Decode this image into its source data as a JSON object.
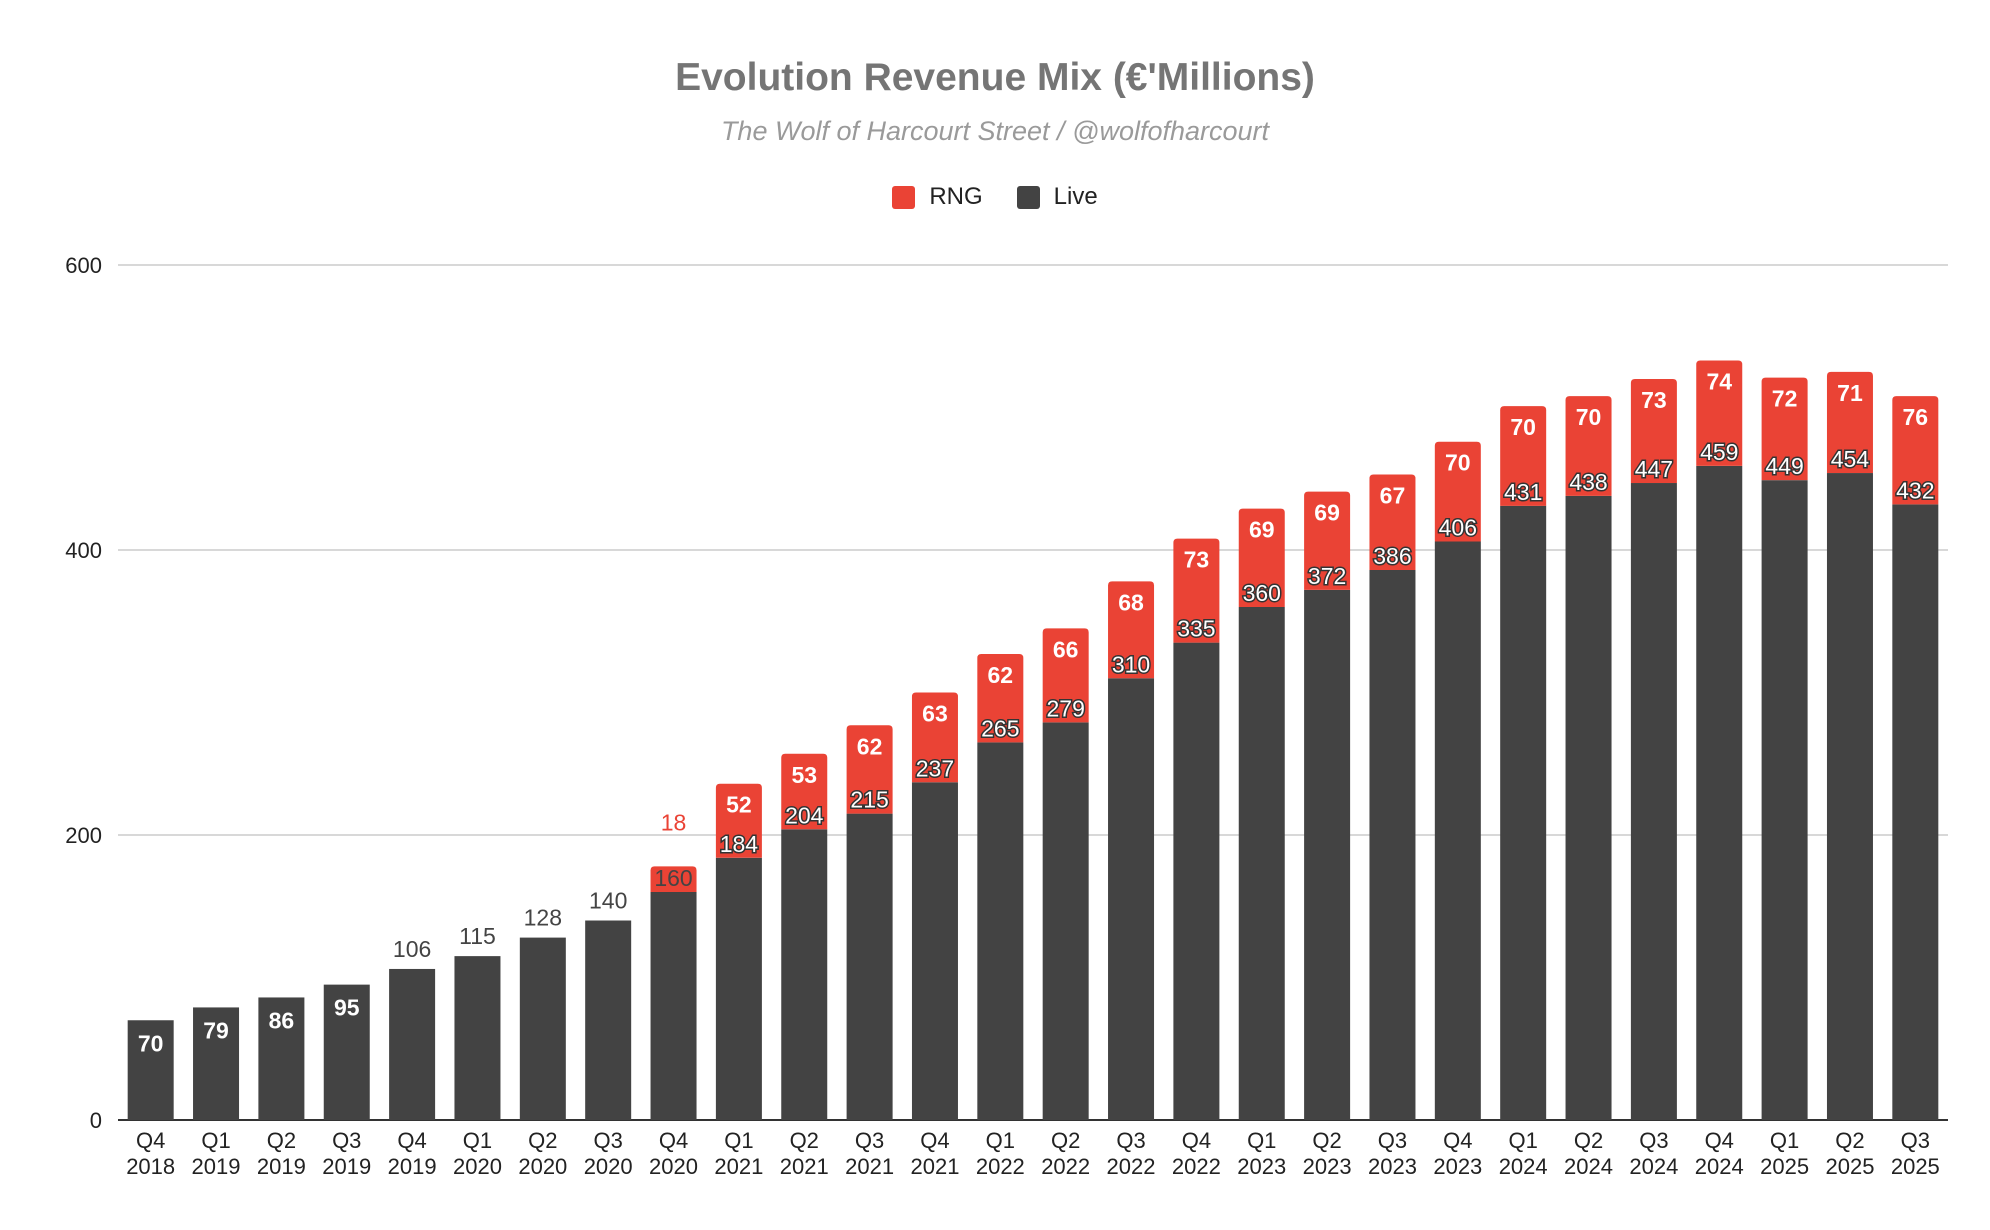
{
  "chart_data": {
    "type": "bar",
    "stacked": true,
    "title": "Evolution Revenue Mix (€'Millions)",
    "subtitle": "The Wolf of Harcourt Street / @wolfofharcourt",
    "xlabel": "",
    "ylabel": "",
    "ylim": [
      0,
      600
    ],
    "yticks": [
      "0",
      "200",
      "400",
      "600"
    ],
    "grid": true,
    "legend_position": "top",
    "categories": [
      "Q4 2018",
      "Q1 2019",
      "Q2 2019",
      "Q3 2019",
      "Q4 2019",
      "Q1 2020",
      "Q2 2020",
      "Q3 2020",
      "Q4 2020",
      "Q1 2021",
      "Q2 2021",
      "Q3 2021",
      "Q4 2021",
      "Q1 2022",
      "Q2 2022",
      "Q3 2022",
      "Q4 2022",
      "Q1 2023",
      "Q2 2023",
      "Q3 2023",
      "Q4 2023",
      "Q1 2024",
      "Q2 2024",
      "Q3 2024",
      "Q4 2024",
      "Q1 2025",
      "Q2 2025",
      "Q3 2025"
    ],
    "series": [
      {
        "name": "Live",
        "color": "#434343",
        "values": [
          70,
          79,
          86,
          95,
          106,
          115,
          128,
          140,
          160,
          184,
          204,
          215,
          237,
          265,
          279,
          310,
          335,
          360,
          372,
          386,
          406,
          431,
          438,
          447,
          459,
          449,
          454,
          432
        ]
      },
      {
        "name": "RNG",
        "color": "#ea4335",
        "values": [
          null,
          null,
          null,
          null,
          null,
          null,
          null,
          null,
          18,
          52,
          53,
          62,
          63,
          62,
          66,
          68,
          73,
          69,
          69,
          67,
          70,
          70,
          70,
          73,
          74,
          72,
          71,
          76
        ]
      }
    ]
  },
  "legend": {
    "items": [
      {
        "label": "RNG",
        "color": "#ea4335"
      },
      {
        "label": "Live",
        "color": "#434343"
      }
    ]
  }
}
